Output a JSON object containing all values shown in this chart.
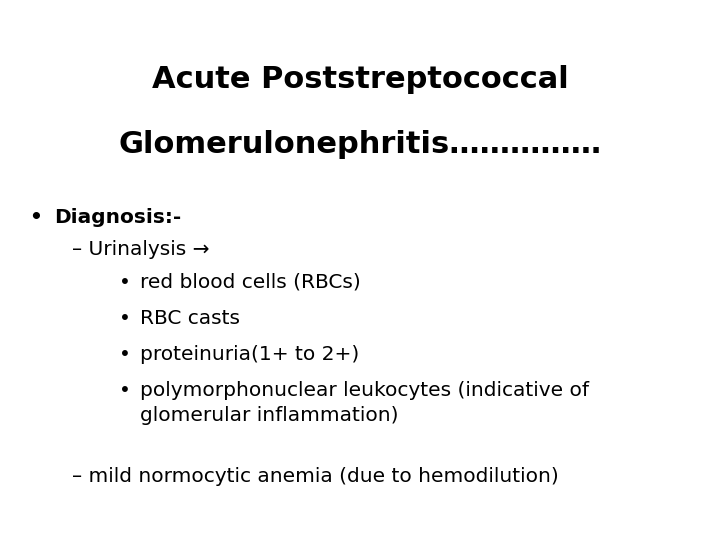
{
  "title_line1": "Acute Poststreptococcal",
  "title_line2": "Glomerulonephritis……………",
  "background_color": "#ffffff",
  "text_color": "#000000",
  "title_fontsize": 22,
  "body_fontsize": 14.5,
  "bullet1": "Diagnosis:-",
  "sub1": "– Urinalysis →",
  "sub1_items": [
    "red blood cells (RBCs)",
    "RBC casts",
    "proteinuria(1+ to 2+)",
    "polymorphonuclear leukocytes (indicative of\nglomerular inflammation)"
  ],
  "sub2": "– mild normocytic anemia (due to hemodilution)"
}
